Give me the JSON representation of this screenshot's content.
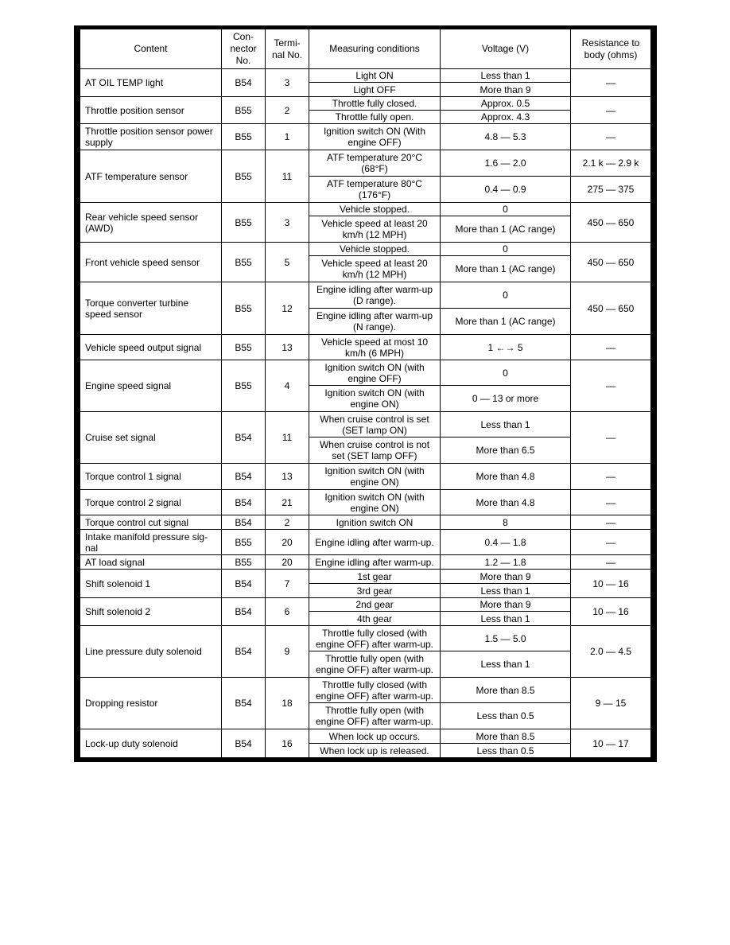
{
  "headers": [
    "Content",
    "Con-\nnector\nNo.",
    "Termi-\nnal No.",
    "Measuring conditions",
    "Voltage (V)",
    "Resistance to\nbody (ohms)"
  ],
  "rows": [
    {
      "content": "AT OIL TEMP light",
      "connector": "B54",
      "terminal": "3",
      "conditions": [
        "Light ON",
        "Light OFF"
      ],
      "voltages": [
        "Less than 1",
        "More than 9"
      ],
      "resistance": [
        "—"
      ]
    },
    {
      "content": "Throttle position sensor",
      "connector": "B55",
      "terminal": "2",
      "conditions": [
        "Throttle fully closed.",
        "Throttle fully open."
      ],
      "voltages": [
        "Approx. 0.5",
        "Approx. 4.3"
      ],
      "resistance": [
        "—"
      ]
    },
    {
      "content": "Throttle position sensor power\nsupply",
      "connector": "B55",
      "terminal": "1",
      "conditions": [
        "Ignition switch ON  (With\nengine OFF)"
      ],
      "voltages": [
        "4.8 — 5.3"
      ],
      "resistance": [
        "—"
      ]
    },
    {
      "content": "ATF temperature sensor",
      "connector": "B55",
      "terminal": "11",
      "conditions": [
        "ATF temperature 20°C\n(68°F)",
        "ATF temperature 80°C\n(176°F)"
      ],
      "voltages": [
        "1.6 — 2.0",
        "0.4 — 0.9"
      ],
      "resistance": [
        "2.1 k — 2.9 k",
        "275 — 375"
      ]
    },
    {
      "content": "Rear vehicle speed sensor\n(AWD)",
      "connector": "B55",
      "terminal": "3",
      "conditions": [
        "Vehicle stopped.",
        "Vehicle speed at least 20\nkm/h (12 MPH)"
      ],
      "voltages": [
        "0",
        "More than 1 (AC range)"
      ],
      "resistance": [
        "450 — 650"
      ]
    },
    {
      "content": "Front vehicle speed sensor",
      "connector": "B55",
      "terminal": "5",
      "conditions": [
        "Vehicle stopped.",
        "Vehicle speed at least 20\nkm/h (12 MPH)"
      ],
      "voltages": [
        "0",
        "More than 1 (AC range)"
      ],
      "resistance": [
        "450 — 650"
      ]
    },
    {
      "content": "Torque converter turbine\nspeed sensor",
      "connector": "B55",
      "terminal": "12",
      "conditions": [
        "Engine idling after warm-up\n(D range).",
        "Engine idling after warm-up\n(N range)."
      ],
      "voltages": [
        "0",
        "More than 1 (AC range)"
      ],
      "resistance": [
        "450 — 650"
      ]
    },
    {
      "content": "Vehicle speed output signal",
      "connector": "B55",
      "terminal": "13",
      "conditions": [
        "Vehicle speed at most 10\nkm/h (6 MPH)"
      ],
      "voltages": [
        "1 ←→ 5"
      ],
      "resistance": [
        "—"
      ]
    },
    {
      "content": "Engine speed signal",
      "connector": "B55",
      "terminal": "4",
      "conditions": [
        "Ignition switch ON (with\nengine OFF)",
        "Ignition switch ON (with\nengine ON)"
      ],
      "voltages": [
        "0",
        "0 — 13 or more"
      ],
      "resistance": [
        "—"
      ]
    },
    {
      "content": "Cruise set signal",
      "connector": "B54",
      "terminal": "11",
      "conditions": [
        "When cruise control is set\n(SET lamp ON)",
        "When cruise control is not\nset (SET lamp OFF)"
      ],
      "voltages": [
        "Less than 1",
        "More than 6.5"
      ],
      "resistance": [
        "—"
      ]
    },
    {
      "content": "Torque control 1 signal",
      "connector": "B54",
      "terminal": "13",
      "conditions": [
        "Ignition switch ON (with\nengine ON)"
      ],
      "voltages": [
        "More than 4.8"
      ],
      "resistance": [
        "—"
      ]
    },
    {
      "content": "Torque control 2 signal",
      "connector": "B54",
      "terminal": "21",
      "conditions": [
        "Ignition switch ON (with\nengine ON)"
      ],
      "voltages": [
        "More than 4.8"
      ],
      "resistance": [
        "—"
      ]
    },
    {
      "content": "Torque control cut signal",
      "connector": "B54",
      "terminal": "2",
      "conditions": [
        "Ignition switch ON"
      ],
      "voltages": [
        "8"
      ],
      "resistance": [
        "—"
      ]
    },
    {
      "content": "Intake manifold pressure sig-\nnal",
      "connector": "B55",
      "terminal": "20",
      "conditions": [
        "Engine idling after warm-up."
      ],
      "voltages": [
        "0.4 — 1.8"
      ],
      "resistance": [
        "—"
      ]
    },
    {
      "content": "AT load signal",
      "connector": "B55",
      "terminal": "20",
      "conditions": [
        "Engine idling after warm-up."
      ],
      "voltages": [
        "1.2 — 1.8"
      ],
      "resistance": [
        "—"
      ]
    },
    {
      "content": "Shift solenoid 1",
      "connector": "B54",
      "terminal": "7",
      "conditions": [
        "1st gear",
        "3rd gear"
      ],
      "voltages": [
        "More than 9",
        "Less than 1"
      ],
      "resistance": [
        "10 — 16"
      ]
    },
    {
      "content": "Shift solenoid 2",
      "connector": "B54",
      "terminal": "6",
      "conditions": [
        "2nd gear",
        "4th gear"
      ],
      "voltages": [
        "More than 9",
        "Less than 1"
      ],
      "resistance": [
        "10 — 16"
      ]
    },
    {
      "content": "Line pressure duty solenoid",
      "connector": "B54",
      "terminal": "9",
      "conditions": [
        "Throttle fully closed (with\nengine OFF) after warm-up.",
        "Throttle fully open (with\nengine OFF) after warm-up."
      ],
      "voltages": [
        "1.5 — 5.0",
        "Less than 1"
      ],
      "resistance": [
        "2.0 — 4.5"
      ]
    },
    {
      "content": "Dropping resistor",
      "connector": "B54",
      "terminal": "18",
      "conditions": [
        "Throttle fully closed (with\nengine OFF) after warm-up.",
        "Throttle fully open (with\nengine OFF) after warm-up."
      ],
      "voltages": [
        "More than 8.5",
        "Less than 0.5"
      ],
      "resistance": [
        "9 — 15"
      ]
    },
    {
      "content": "Lock-up duty solenoid",
      "connector": "B54",
      "terminal": "16",
      "conditions": [
        "When lock up occurs.",
        "When lock up is released."
      ],
      "voltages": [
        "More than 8.5",
        "Less than 0.5"
      ],
      "resistance": [
        "10 — 17"
      ]
    }
  ]
}
